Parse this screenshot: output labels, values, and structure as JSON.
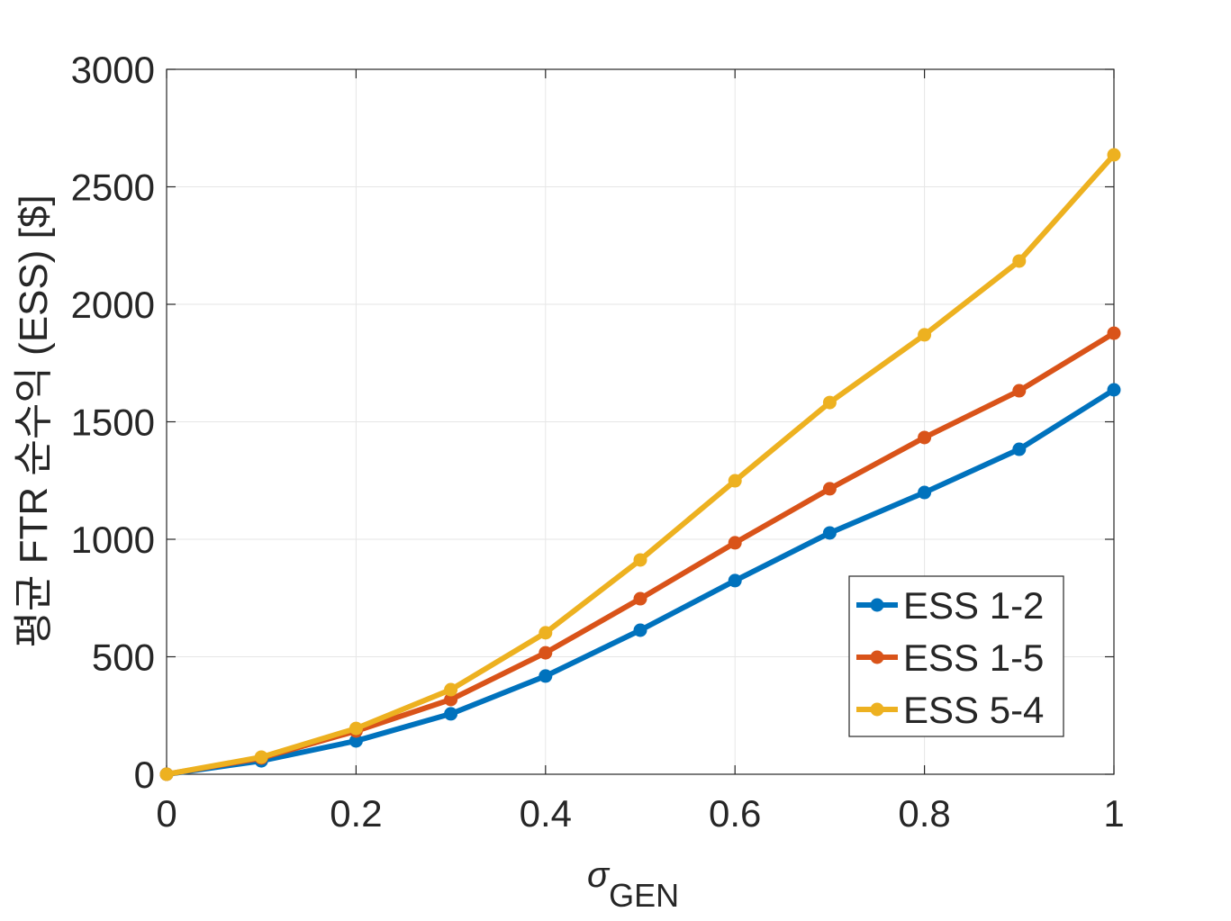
{
  "chart_data": {
    "type": "line",
    "title": "",
    "xlabel_symbol": "σ",
    "xlabel_subscript": "GEN",
    "ylabel": "평균 FTR 순수익 (ESS) [$]",
    "xlim": [
      0,
      1
    ],
    "ylim": [
      0,
      3000
    ],
    "xticks": [
      "0",
      "0.2",
      "0.4",
      "0.6",
      "0.8",
      "1"
    ],
    "yticks": [
      "0",
      "500",
      "1000",
      "1500",
      "2000",
      "2500",
      "3000"
    ],
    "grid": true,
    "legend_position": "bottom-right",
    "x": [
      0,
      0.1,
      0.2,
      0.3,
      0.4,
      0.5,
      0.6,
      0.7,
      0.8,
      0.9,
      1.0
    ],
    "series": [
      {
        "name": "ESS 1-2",
        "color": "#0072BD",
        "values": [
          0,
          57,
          142,
          257,
          418,
          613,
          824,
          1027,
          1199,
          1383,
          1636
        ]
      },
      {
        "name": "ESS 1-5",
        "color": "#D95319",
        "values": [
          0,
          69,
          184,
          318,
          517,
          747,
          985,
          1215,
          1433,
          1632,
          1877
        ]
      },
      {
        "name": "ESS 5-4",
        "color": "#EDB120",
        "values": [
          0,
          73,
          195,
          360,
          602,
          912,
          1249,
          1582,
          1870,
          2184,
          2636
        ]
      }
    ]
  }
}
